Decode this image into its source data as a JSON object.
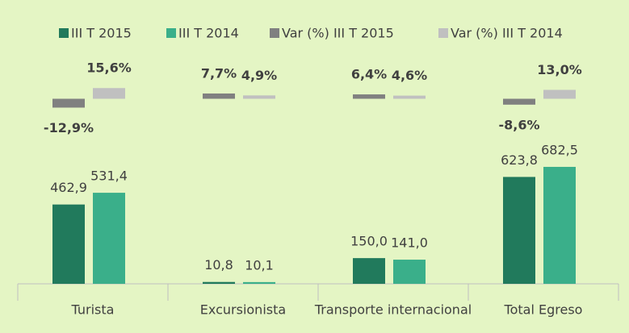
{
  "chart_data": {
    "type": "bar",
    "categories": [
      "Turista",
      "Excursionista",
      "Transporte internacional",
      "Total Egreso"
    ],
    "series": [
      {
        "name": "III T 2015",
        "color": "#217a5c",
        "values": [
          462.9,
          10.8,
          150.0,
          623.8
        ],
        "value_labels": [
          "462,9",
          "10,8",
          "150,0",
          "623,8"
        ]
      },
      {
        "name": "III T 2014",
        "color": "#3aaf8a",
        "values": [
          531.4,
          10.1,
          141.0,
          682.5
        ],
        "value_labels": [
          "531,4",
          "10,1",
          "141,0",
          "682,5"
        ]
      },
      {
        "name": "Var (%) III T 2015",
        "color": "#808080",
        "axis": "y2",
        "values": [
          -12.9,
          7.7,
          6.4,
          -8.6
        ],
        "value_labels": [
          "-12,9%",
          "7,7%",
          "6,4%",
          "-8,6%"
        ]
      },
      {
        "name": "Var (%) III T 2014",
        "color": "#c0c0c0",
        "axis": "y2",
        "values": [
          15.6,
          4.9,
          4.6,
          13.0
        ],
        "value_labels": [
          "15,6%",
          "4,9%",
          "4,6%",
          "13,0%"
        ]
      }
    ],
    "ylim": [
      0,
      1400
    ],
    "y2lim": [
      -270,
      80
    ],
    "legend": "top"
  }
}
